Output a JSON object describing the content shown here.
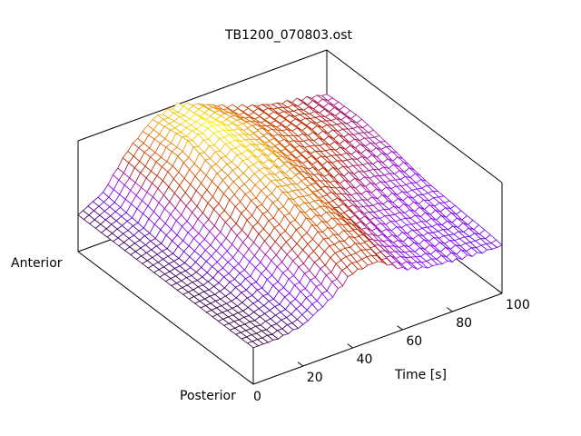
{
  "chart_data": {
    "type": "surface-3d",
    "title": "TB1200_070803.ost",
    "xlabel": "Time [s]",
    "ylabel_low": "Posterior",
    "ylabel_high": "Anterior",
    "x_ticks": [
      "0",
      "20",
      "40",
      "60",
      "80",
      "100"
    ],
    "x_tick_values": [
      0,
      20,
      40,
      60,
      80,
      100
    ],
    "xlim": [
      0,
      100
    ],
    "ylim": [
      0,
      1
    ],
    "zlim": [
      0,
      1
    ],
    "color_range": [
      0.3,
      1.05
    ],
    "palette": "black-purple-red-orange-yellow",
    "grid_time": [
      0,
      10,
      20,
      30,
      40,
      50,
      60,
      70,
      80,
      90,
      100
    ],
    "grid_position": [
      0,
      0.2,
      0.4,
      0.6,
      0.8,
      1.0
    ],
    "z": [
      [
        0.33,
        0.33,
        0.37,
        0.5,
        0.68,
        0.7,
        0.55,
        0.48,
        0.46,
        0.44,
        0.43
      ],
      [
        0.33,
        0.34,
        0.42,
        0.62,
        0.8,
        0.8,
        0.62,
        0.52,
        0.5,
        0.47,
        0.45
      ],
      [
        0.33,
        0.36,
        0.5,
        0.75,
        0.92,
        0.88,
        0.7,
        0.6,
        0.56,
        0.52,
        0.5
      ],
      [
        0.33,
        0.38,
        0.6,
        0.88,
        1.0,
        0.95,
        0.8,
        0.7,
        0.65,
        0.6,
        0.56
      ],
      [
        0.33,
        0.42,
        0.72,
        0.98,
        1.05,
        0.98,
        0.85,
        0.76,
        0.7,
        0.65,
        0.6
      ],
      [
        0.33,
        0.45,
        0.75,
        0.95,
        1.0,
        0.92,
        0.82,
        0.74,
        0.68,
        0.64,
        0.6
      ]
    ]
  }
}
